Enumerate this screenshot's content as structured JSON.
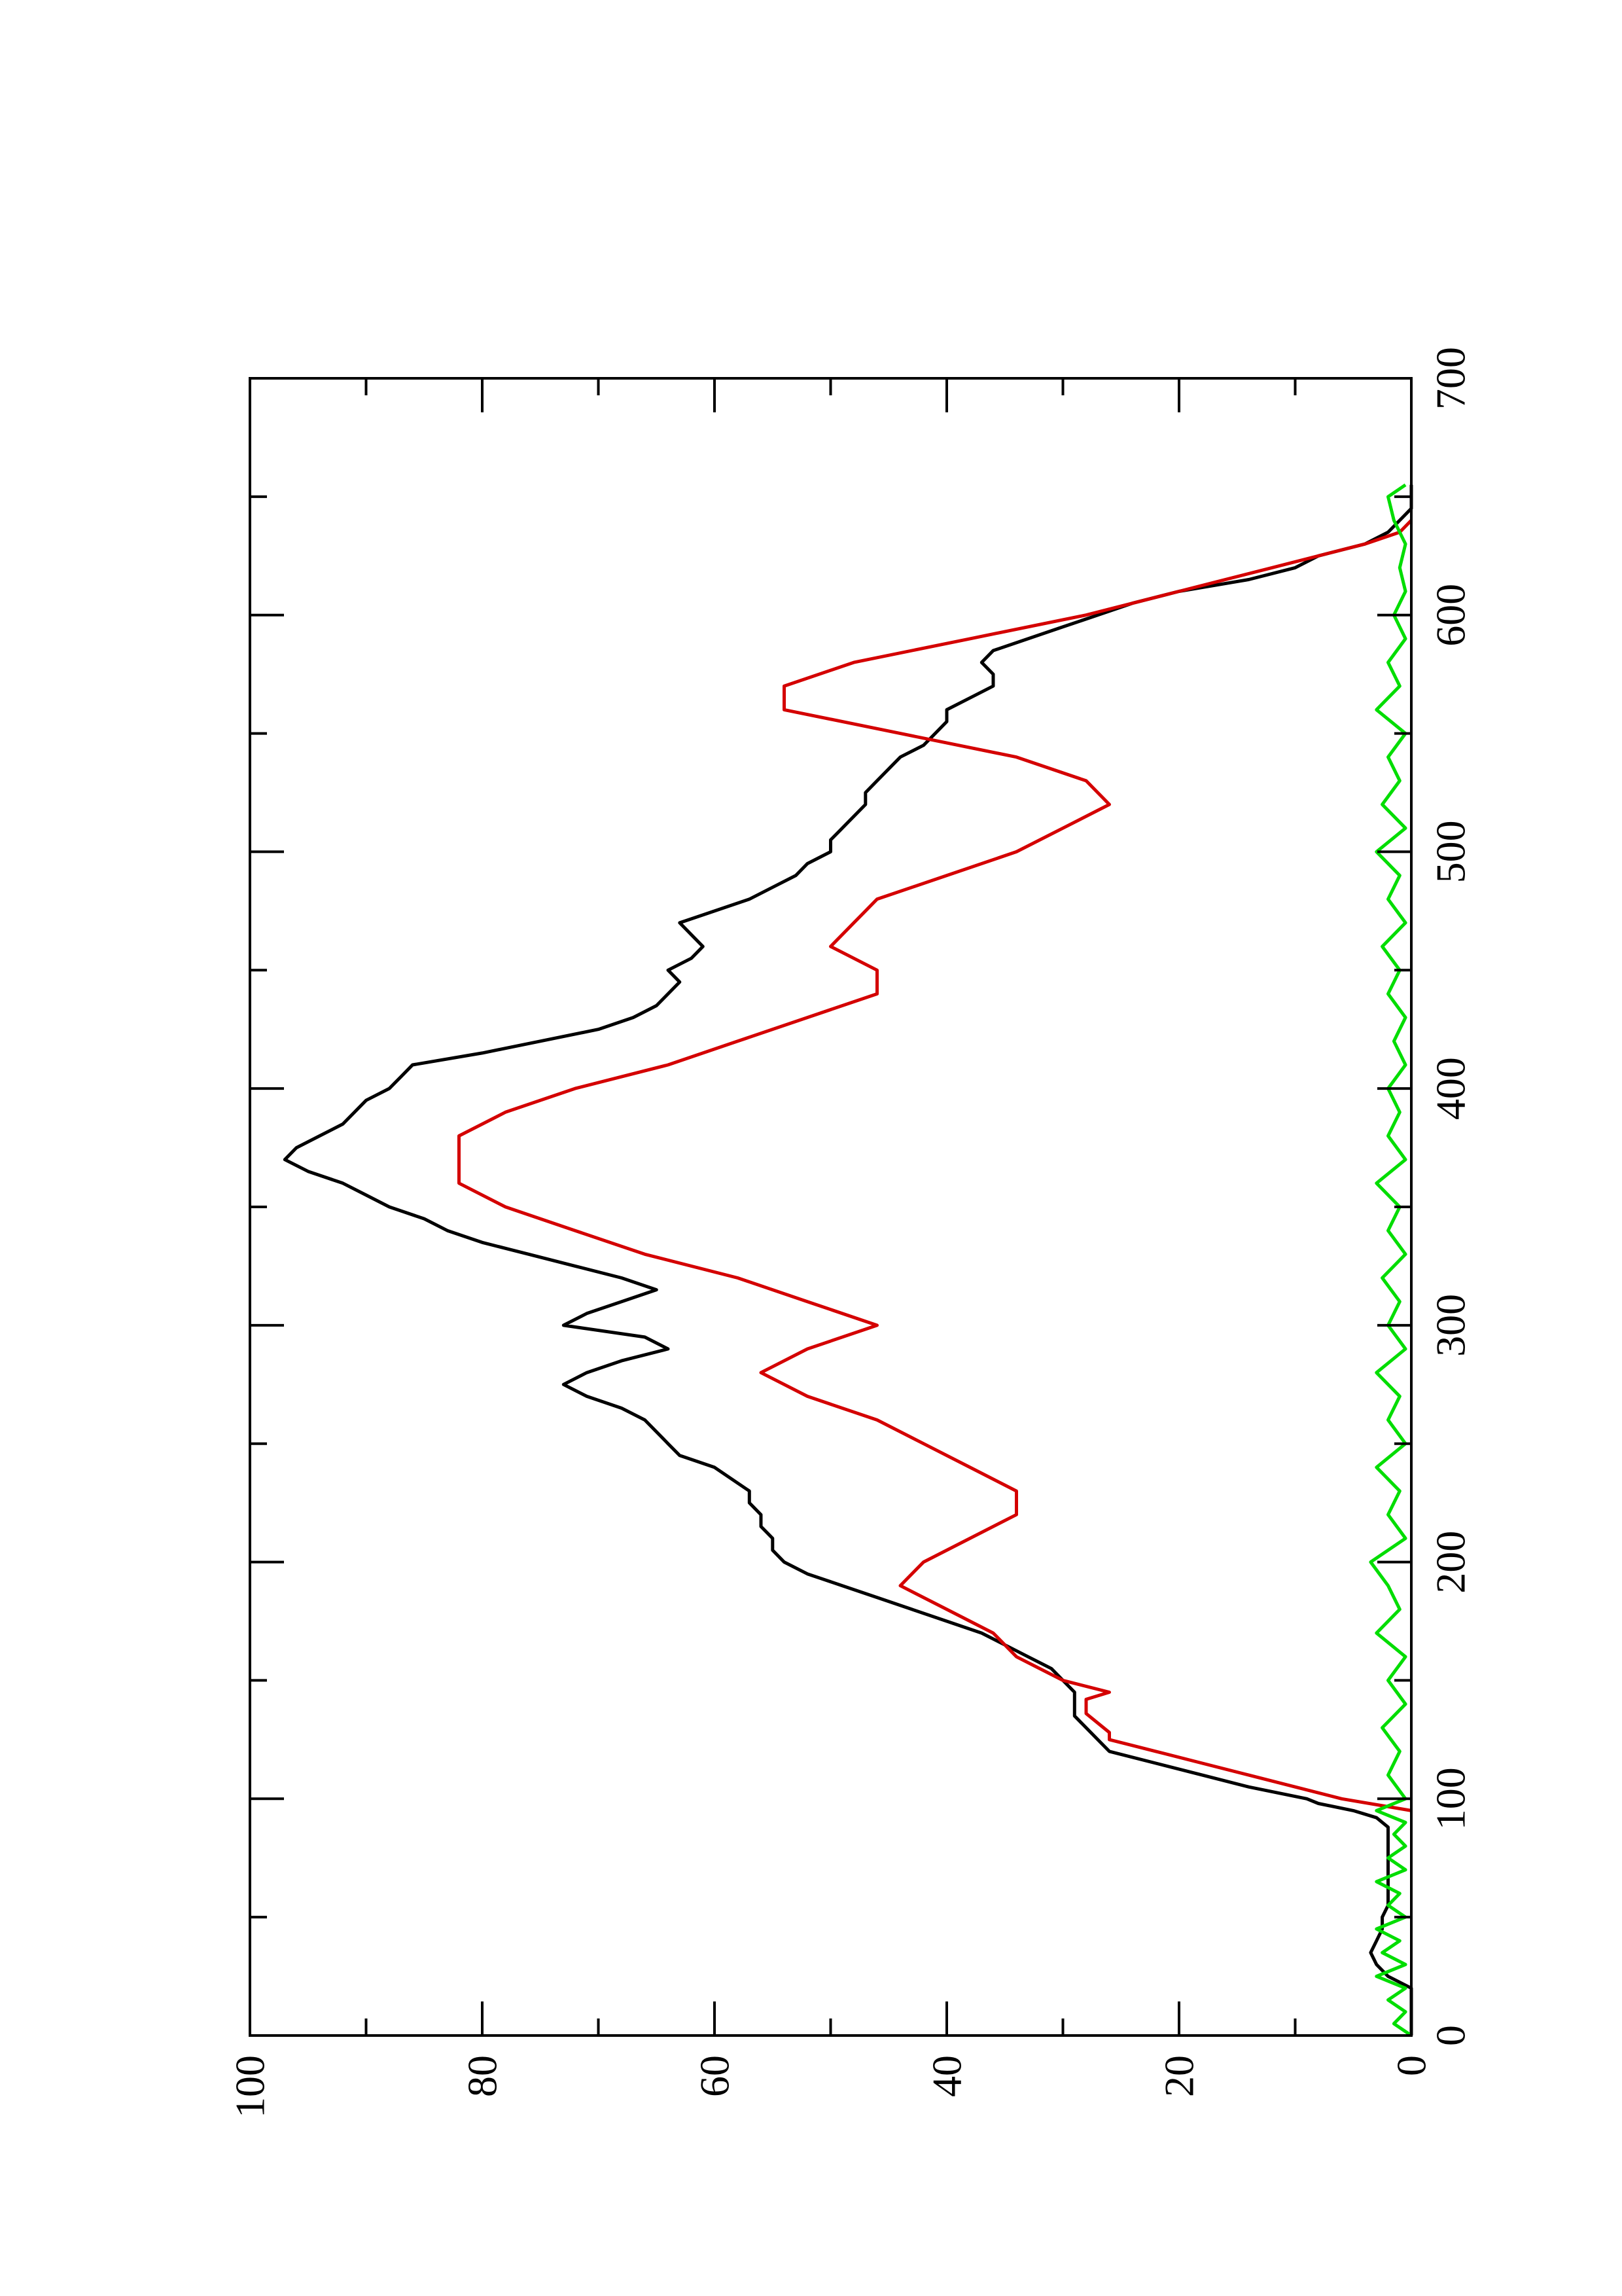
{
  "chart_data": {
    "type": "line",
    "orientation": "rotated-90-ccw",
    "title": "",
    "xlabel": "",
    "ylabel": "",
    "xlim": [
      0,
      700
    ],
    "ylim": [
      0,
      100
    ],
    "x_ticks": [
      0,
      100,
      200,
      300,
      400,
      500,
      600,
      700
    ],
    "y_ticks": [
      0,
      20,
      40,
      60,
      80,
      100
    ],
    "x_minor_ticks": [
      50,
      150,
      250,
      350,
      450,
      550,
      650
    ],
    "y_minor_ticks": [
      10,
      30,
      50,
      70,
      90
    ],
    "grid": false,
    "legend": "none",
    "series": [
      {
        "color": "#000000",
        "x": [
          0,
          20,
          25,
          30,
          35,
          40,
          45,
          50,
          55,
          60,
          70,
          80,
          88,
          92,
          95,
          98,
          100,
          105,
          110,
          115,
          120,
          125,
          130,
          135,
          140,
          145,
          150,
          155,
          160,
          165,
          170,
          175,
          180,
          185,
          190,
          195,
          200,
          205,
          210,
          215,
          220,
          225,
          230,
          240,
          245,
          250,
          255,
          260,
          265,
          270,
          275,
          280,
          285,
          290,
          295,
          300,
          305,
          310,
          315,
          320,
          325,
          330,
          335,
          340,
          345,
          350,
          355,
          360,
          365,
          370,
          375,
          380,
          385,
          390,
          395,
          400,
          405,
          410,
          415,
          420,
          425,
          430,
          435,
          440,
          445,
          450,
          455,
          460,
          465,
          470,
          475,
          480,
          485,
          490,
          495,
          500,
          505,
          510,
          515,
          520,
          525,
          530,
          535,
          540,
          545,
          550,
          555,
          560,
          565,
          570,
          575,
          580,
          585,
          590,
          595,
          600,
          605,
          610,
          615,
          620,
          625,
          630,
          635,
          640,
          645,
          650,
          655
        ],
        "y": [
          0,
          0,
          2,
          3,
          3.5,
          3,
          2.5,
          2.5,
          2,
          2,
          2,
          2,
          2,
          3,
          5,
          8,
          9,
          14,
          18,
          22,
          26,
          27,
          28,
          29,
          29,
          29,
          30,
          31,
          33,
          35,
          37,
          40,
          43,
          46,
          49,
          52,
          54,
          55,
          55,
          56,
          56,
          57,
          57,
          60,
          63,
          64,
          65,
          66,
          68,
          71,
          73,
          71,
          68,
          64,
          66,
          73,
          71,
          68,
          65,
          68,
          72,
          76,
          80,
          83,
          85,
          88,
          90,
          92,
          95,
          97,
          96,
          94,
          92,
          91,
          90,
          88,
          87,
          86,
          80,
          75,
          70,
          67,
          65,
          64,
          63,
          64,
          62,
          61,
          62,
          63,
          60,
          57,
          55,
          53,
          52,
          50,
          50,
          49,
          48,
          47,
          47,
          46,
          45,
          44,
          42,
          41,
          40,
          40,
          38,
          36,
          36,
          37,
          36,
          33,
          30,
          27,
          24,
          20,
          14,
          10,
          8,
          4,
          2,
          1,
          0,
          0,
          0
        ]
      },
      {
        "color": "#d40000",
        "x": [
          95,
          100,
          105,
          110,
          115,
          120,
          125,
          128,
          136,
          142,
          145,
          150,
          160,
          170,
          180,
          190,
          200,
          210,
          220,
          230,
          240,
          250,
          260,
          270,
          280,
          290,
          300,
          310,
          320,
          330,
          340,
          350,
          360,
          370,
          380,
          390,
          400,
          410,
          420,
          430,
          440,
          450,
          460,
          470,
          480,
          490,
          500,
          510,
          520,
          530,
          540,
          550,
          560,
          570,
          580,
          590,
          600,
          610,
          620,
          630,
          635,
          640
        ],
        "y": [
          0,
          6,
          10,
          14,
          18,
          22,
          26,
          26,
          28,
          28,
          26,
          30,
          34,
          36,
          40,
          44,
          42,
          38,
          34,
          34,
          38,
          42,
          46,
          52,
          56,
          52,
          46,
          52,
          58,
          66,
          72,
          78,
          82,
          82,
          82,
          78,
          72,
          64,
          58,
          52,
          46,
          46,
          50,
          48,
          46,
          40,
          34,
          30,
          26,
          28,
          34,
          44,
          54,
          54,
          48,
          38,
          28,
          20,
          12,
          4,
          1,
          0
        ]
      },
      {
        "color": "#00dd00",
        "x": [
          0,
          5,
          10,
          15,
          20,
          25,
          30,
          35,
          40,
          45,
          50,
          55,
          60,
          65,
          70,
          75,
          80,
          85,
          90,
          95,
          100,
          110,
          120,
          130,
          140,
          150,
          160,
          170,
          180,
          190,
          200,
          210,
          220,
          230,
          240,
          250,
          260,
          270,
          280,
          290,
          300,
          310,
          320,
          330,
          340,
          350,
          360,
          370,
          380,
          390,
          400,
          410,
          420,
          430,
          440,
          450,
          460,
          470,
          480,
          490,
          500,
          510,
          520,
          530,
          540,
          550,
          560,
          570,
          580,
          590,
          600,
          610,
          620,
          630,
          640,
          650,
          655
        ],
        "y": [
          0,
          1.5,
          0.5,
          2,
          0.5,
          3,
          0.5,
          2.5,
          1,
          3,
          0.5,
          2,
          1,
          3,
          0.5,
          2,
          0.5,
          1.5,
          0.5,
          3,
          0.5,
          2,
          1,
          2.5,
          0.5,
          2,
          0.5,
          3,
          1,
          2,
          3.5,
          0.5,
          2,
          1,
          3,
          0.5,
          2,
          1,
          3,
          0.5,
          2,
          1,
          2.5,
          0.5,
          2,
          1,
          3,
          0.5,
          2,
          1,
          2,
          0.5,
          1.5,
          0.5,
          2,
          1,
          2.5,
          0.5,
          2,
          1,
          3,
          0.5,
          2.5,
          1,
          2,
          0.5,
          3,
          1,
          2,
          0.5,
          1.5,
          0.5,
          1,
          0.5,
          1.5,
          2,
          0.5
        ]
      }
    ]
  }
}
